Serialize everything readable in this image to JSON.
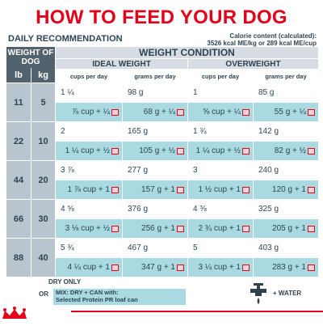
{
  "title": "HOW TO FEED YOUR DOG",
  "daily": "DAILY RECOMMENDATION",
  "calorie": {
    "line1": "Calorie content (calculated):",
    "line2": "3526 kcal ME/kg or 289 kcal ME/cup"
  },
  "headers": {
    "weight_of_dog": "WEIGHT OF DOG",
    "lb": "lb",
    "kg": "kg",
    "weight_condition": "WEIGHT CONDITION",
    "ideal": "IDEAL WEIGHT",
    "over": "OVERWEIGHT",
    "cups": "cups per day",
    "grams": "grams per day"
  },
  "rows": [
    {
      "lb": "11",
      "kg": "5",
      "ic": "1 ¼",
      "ig": "98 g",
      "oc": "1",
      "og": "85 g",
      "ic2": "⅞ cup + ¼",
      "ig2": "68 g + ¼",
      "oc2": "⅝ cup + ¼",
      "og2": "55 g + ¼"
    },
    {
      "lb": "22",
      "kg": "10",
      "ic": "2",
      "ig": "165 g",
      "oc": "1 ¾",
      "og": "142 g",
      "ic2": "1 ¼ cup + ½",
      "ig2": "105 g + ½",
      "oc2": "1 ¼ cup + ½",
      "og2": "82 g + ½"
    },
    {
      "lb": "44",
      "kg": "20",
      "ic": "3 ⅞",
      "ig": "277 g",
      "oc": "3",
      "og": "240 g",
      "ic2": "1 ⅞ cup + 1",
      "ig2": "157 g + 1",
      "oc2": "1 ½ cup + 1",
      "og2": "120 g + 1"
    },
    {
      "lb": "66",
      "kg": "30",
      "ic": "4 ⅝",
      "ig": "376 g",
      "oc": "4 ⅜",
      "og": "325 g",
      "ic2": "3 ⅛ cup + ½",
      "ig2": "256 g + 1",
      "oc2": "2 ¾ cup + 1",
      "og2": "205 g + 1"
    },
    {
      "lb": "88",
      "kg": "40",
      "ic": "5 ¾",
      "ig": "467 g",
      "oc": "5",
      "og": "403 g",
      "ic2": "4 ¼ cup + 1",
      "ig2": "347 g + 1",
      "oc2": "3 ¼ cup + 1",
      "og2": "283 g + 1"
    }
  ],
  "legend": {
    "dry": "DRY ONLY",
    "or": "OR",
    "mix1": "MIX: DRY + CAN with:",
    "mix2": "Selected Protein PR loaf can",
    "water": "WATER"
  },
  "icons": {
    "can": "can-icon",
    "faucet": "faucet-icon",
    "logo": "royal-canin-logo"
  },
  "colors": {
    "title": "#e2001a",
    "header_dark": "#53636e",
    "header_light": "#d7dde2",
    "mix": "#a9dae2",
    "text": "#2f4452"
  }
}
